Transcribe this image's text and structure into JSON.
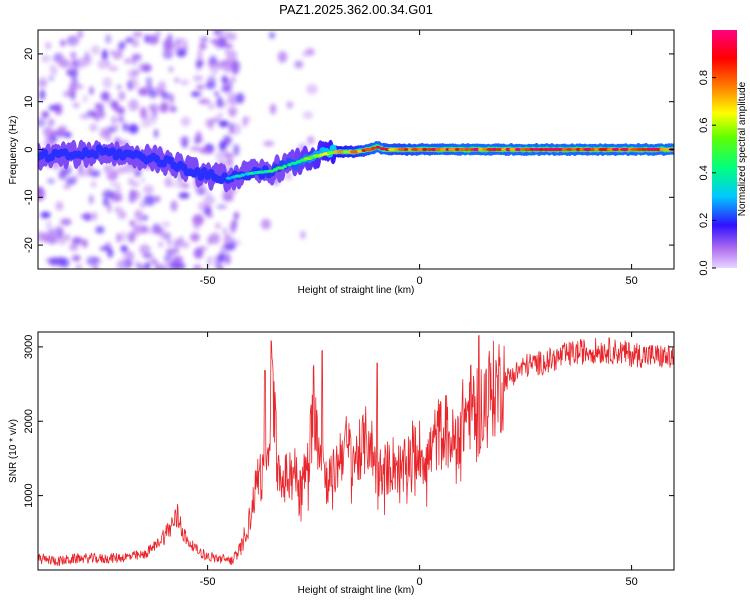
{
  "title": "PAZ1.2025.362.00.34.G01",
  "chart_data": [
    {
      "type": "heatmap",
      "xlabel": "Height of straight line (km)",
      "ylabel": "Frequency (Hz)",
      "xlim": [
        -90,
        60
      ],
      "ylim": [
        -25,
        25
      ],
      "x_ticks": [
        -50,
        0,
        50
      ],
      "y_ticks": [
        -20,
        -10,
        0,
        10,
        20
      ],
      "x_tick_labels": [
        "-50",
        "0",
        "50"
      ],
      "y_tick_labels": [
        "-20",
        "-10",
        "0",
        "10",
        "20"
      ],
      "ridge": {
        "x": [
          -88,
          -80,
          -75,
          -70,
          -65,
          -60,
          -55,
          -50,
          -45,
          -40,
          -35,
          -30,
          -25,
          -20,
          -15,
          -12,
          -10,
          -8,
          -5,
          0,
          5,
          10,
          20,
          30,
          40,
          50,
          60
        ],
        "freq": [
          -1.5,
          -1,
          -0.5,
          -1,
          -1.5,
          -2.5,
          -4,
          -5.5,
          -6,
          -5,
          -4.5,
          -3,
          -1.5,
          -0.5,
          -0.5,
          0,
          0.5,
          0,
          0,
          0,
          0,
          0,
          0,
          0,
          0,
          0,
          0
        ],
        "amplitude": [
          0.1,
          0.12,
          0.15,
          0.2,
          0.2,
          0.3,
          0.35,
          0.3,
          0.35,
          0.4,
          0.45,
          0.5,
          0.6,
          0.7,
          0.8,
          0.9,
          0.95,
          0.9,
          0.85,
          0.9,
          0.92,
          0.95,
          0.95,
          0.95,
          0.95,
          0.95,
          0.95
        ]
      }
    },
    {
      "type": "colorbar",
      "label": "Normalized spectral amplitude",
      "range": [
        0,
        1
      ],
      "ticks": [
        0.0,
        0.2,
        0.4,
        0.6,
        0.8
      ],
      "tick_labels": [
        "0.0",
        "0.2",
        "0.4",
        "0.6",
        "0.8"
      ]
    },
    {
      "type": "line",
      "xlabel": "Height of straight line (km)",
      "ylabel": "SNR (10 * v/v)",
      "xlim": [
        -90,
        60
      ],
      "ylim": [
        0,
        3200
      ],
      "x_ticks": [
        -50,
        0,
        50
      ],
      "y_ticks": [
        1000,
        2000,
        3000
      ],
      "x_tick_labels": [
        "-50",
        "0",
        "50"
      ],
      "y_tick_labels": [
        "1000",
        "2000",
        "3000"
      ],
      "color": "#e8252a",
      "series": [
        {
          "name": "SNR",
          "x": [
            -90,
            -85,
            -80,
            -75,
            -70,
            -65,
            -62,
            -60,
            -57,
            -55,
            -52,
            -50,
            -47,
            -44,
            -42,
            -40,
            -38,
            -36,
            -35,
            -33,
            -30,
            -28,
            -26,
            -25,
            -22,
            -20,
            -18,
            -15,
            -12,
            -10,
            -8,
            -6,
            -4,
            -2,
            0,
            2,
            4,
            6,
            8,
            10,
            12,
            14,
            15,
            17,
            20,
            25,
            30,
            35,
            40,
            45,
            50,
            55,
            60
          ],
          "y": [
            150,
            120,
            160,
            150,
            170,
            200,
            350,
            480,
            720,
            400,
            250,
            180,
            150,
            130,
            350,
            700,
            1300,
            1200,
            2600,
            1100,
            1400,
            1100,
            1500,
            2300,
            1200,
            1300,
            1700,
            1500,
            1800,
            1300,
            1350,
            1450,
            1300,
            1600,
            1600,
            1500,
            1800,
            1900,
            1700,
            2000,
            2200,
            2100,
            2300,
            2400,
            2550,
            2750,
            2800,
            2900,
            2950,
            2950,
            2900,
            2880,
            2850
          ]
        }
      ],
      "spikes": [
        {
          "x": -36.5,
          "y": 2680
        },
        {
          "x": -23,
          "y": 2950
        },
        {
          "x": -10,
          "y": 2780
        },
        {
          "x": 14,
          "y": 3150
        }
      ]
    }
  ]
}
